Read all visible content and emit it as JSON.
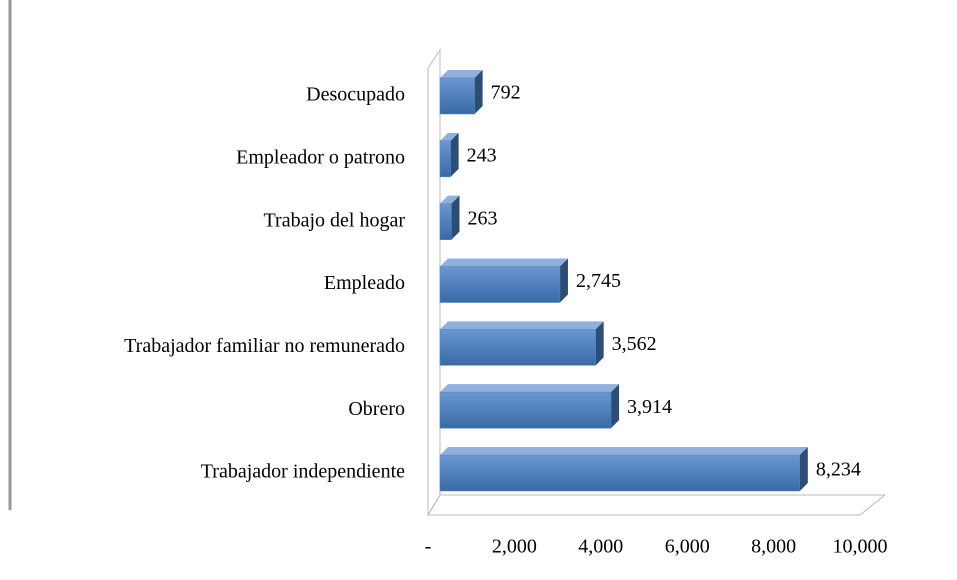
{
  "chart_data": {
    "type": "bar",
    "orientation": "horizontal",
    "categories": [
      "Desocupado",
      "Empleador o patrono",
      "Trabajo del hogar",
      "Empleado",
      "Trabajador familiar no remunerado",
      "Obrero",
      "Trabajador independiente"
    ],
    "values": [
      792,
      243,
      263,
      2745,
      3562,
      3914,
      8234
    ],
    "value_labels": [
      "792",
      "243",
      "263",
      "2,745",
      "3,562",
      "3,914",
      "8,234"
    ],
    "color": "#4f81bd",
    "xlim": [
      0,
      10000
    ],
    "xticks": [
      {
        "value": 0,
        "label": "-"
      },
      {
        "value": 2000,
        "label": "2,000"
      },
      {
        "value": 4000,
        "label": "4,000"
      },
      {
        "value": 6000,
        "label": "6,000"
      },
      {
        "value": 8000,
        "label": "8,000"
      },
      {
        "value": 10000,
        "label": "10,000"
      }
    ],
    "grid": false
  }
}
